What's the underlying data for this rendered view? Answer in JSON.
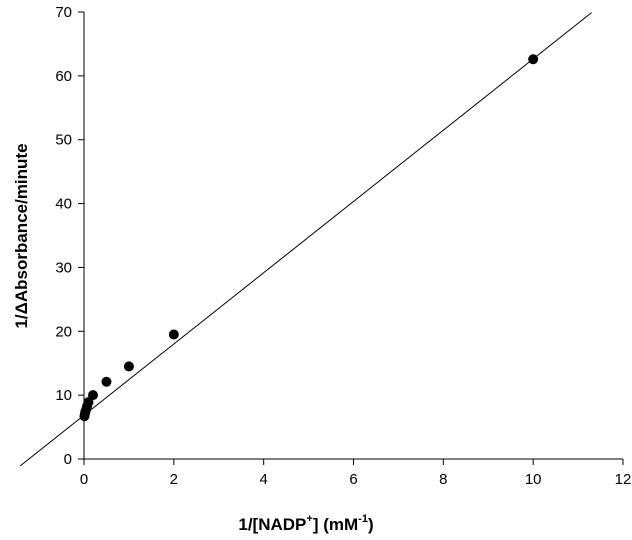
{
  "chart_data": {
    "type": "scatter",
    "title": "",
    "xlabel": {
      "prefix": "1/[NADP",
      "sup": "+",
      "middle": "] (mM",
      "sup2": "-1",
      "suffix": ")"
    },
    "ylabel": "1/ΔAbsorbance/minute",
    "xlim": [
      0,
      12
    ],
    "ylim": [
      0,
      70
    ],
    "xticks": [
      0,
      2,
      4,
      6,
      8,
      10,
      12
    ],
    "yticks": [
      0,
      10,
      20,
      30,
      40,
      50,
      60,
      70
    ],
    "grid": false,
    "legend": "none",
    "marker_color": "#000000",
    "points": [
      {
        "x": 0.01,
        "y": 6.7
      },
      {
        "x": 0.02,
        "y": 7.1
      },
      {
        "x": 0.03,
        "y": 7.4
      },
      {
        "x": 0.05,
        "y": 7.8
      },
      {
        "x": 0.07,
        "y": 8.3
      },
      {
        "x": 0.1,
        "y": 8.9
      },
      {
        "x": 0.2,
        "y": 10.0
      },
      {
        "x": 0.5,
        "y": 12.1
      },
      {
        "x": 1.0,
        "y": 14.5
      },
      {
        "x": 2.0,
        "y": 19.5
      },
      {
        "x": 10.0,
        "y": 62.6
      }
    ],
    "fit_line": {
      "slope": 5.58,
      "intercept": 6.85,
      "x_range": [
        -1.42,
        11.3
      ]
    }
  }
}
